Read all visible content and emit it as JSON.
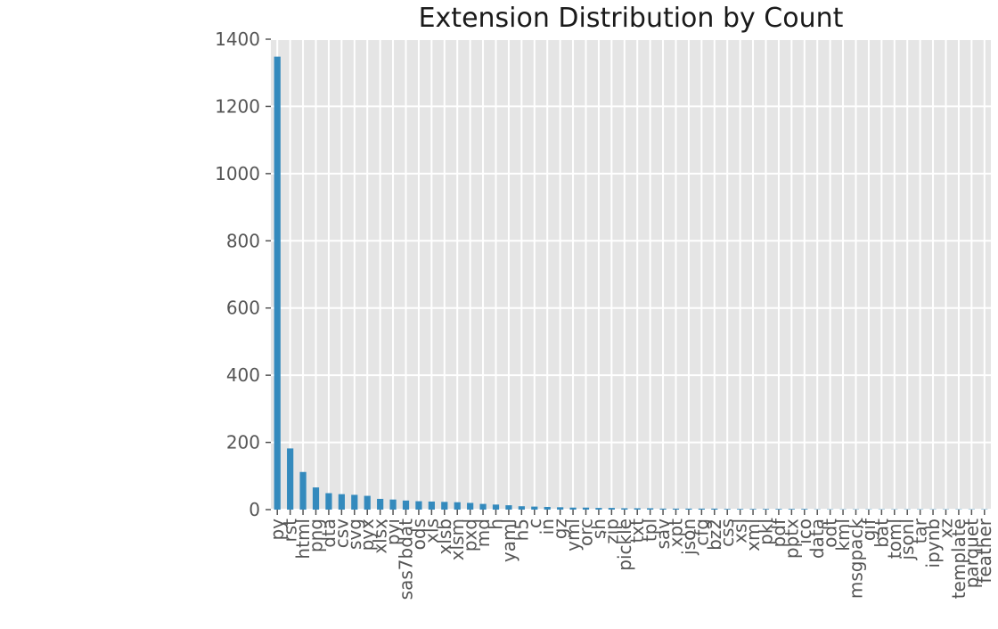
{
  "chart_data": {
    "type": "bar",
    "title": "Extension Distribution by Count",
    "xlabel": "",
    "ylabel": "",
    "ylim": [
      0,
      1400
    ],
    "yticks": [
      0,
      200,
      400,
      600,
      800,
      1000,
      1200,
      1400
    ],
    "grid": true,
    "legend": "none",
    "categories": [
      "py",
      "rst",
      "html",
      "png",
      "dta",
      "csv",
      "svg",
      "pyx",
      "xlsx",
      "pyi",
      "sas7bdat",
      "ods",
      "xls",
      "xlsb",
      "xlsm",
      "pxd",
      "md",
      "h",
      "yaml",
      "h5",
      "c",
      "in",
      "gz",
      "yml",
      "orc",
      "sh",
      "zip",
      "pickle",
      "txt",
      "tpl",
      "sav",
      "xpt",
      "json",
      "cfg",
      "bz2",
      "css",
      "xsl",
      "xml",
      "pkl",
      "pdf",
      "pptx",
      "ico",
      "data",
      "odt",
      "kml",
      "msgpack",
      "gif",
      "bat",
      "toml",
      "jsonl",
      "tar",
      "ipynb",
      "xz",
      "template",
      "parquet",
      "feather"
    ],
    "values": [
      1348,
      182,
      112,
      66,
      49,
      46,
      44,
      41,
      32,
      30,
      27,
      25,
      24,
      23,
      22,
      20,
      17,
      15,
      13,
      10,
      9,
      8,
      7,
      6,
      6,
      5,
      5,
      4,
      4,
      4,
      3,
      3,
      3,
      3,
      3,
      2,
      2,
      2,
      2,
      2,
      2,
      2,
      1,
      1,
      1,
      1,
      1,
      1,
      1,
      1,
      1,
      1,
      1,
      1,
      1,
      1
    ]
  },
  "colors": {
    "bar": "#348ABD",
    "plot_background": "#E5E5E5",
    "grid": "#FFFFFF",
    "tick_text": "#555555",
    "title_text": "#1A1A1A"
  }
}
